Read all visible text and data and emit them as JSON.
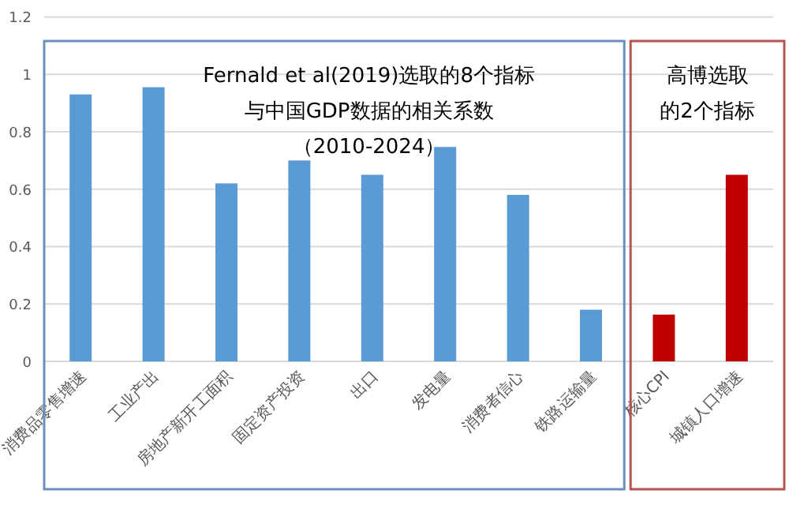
{
  "chart_data": {
    "type": "bar",
    "categories": [
      "消费品零售增速",
      "工业产出",
      "房地产新开工面积",
      "固定资产投资",
      "出口",
      "发电量",
      "消费者信心",
      "铁路运输量",
      "核心CPI",
      "城镇人口增速"
    ],
    "values": [
      0.93,
      0.955,
      0.62,
      0.7,
      0.65,
      0.747,
      0.58,
      0.18,
      0.163,
      0.65
    ],
    "colors": [
      "#5b9bd5",
      "#5b9bd5",
      "#5b9bd5",
      "#5b9bd5",
      "#5b9bd5",
      "#5b9bd5",
      "#5b9bd5",
      "#5b9bd5",
      "#c00000",
      "#c00000"
    ],
    "ylim": [
      0,
      1.2
    ],
    "yticks": [
      0,
      {
        "value": 0.2,
        "label": "0.2"
      },
      {
        "value": 0.4,
        "label": "0.4"
      },
      {
        "value": 0.6,
        "label": "0.6"
      },
      {
        "value": 0.8,
        "label": "0.8"
      },
      1,
      {
        "value": 1.2,
        "label": "1.2"
      }
    ],
    "grid": "y",
    "annotations": [
      "Fernald et al(2019)选取的8个指标",
      "与中国GDP数据的相关系数",
      "（2010-2024）",
      "高博选取",
      "的2个指标"
    ]
  }
}
